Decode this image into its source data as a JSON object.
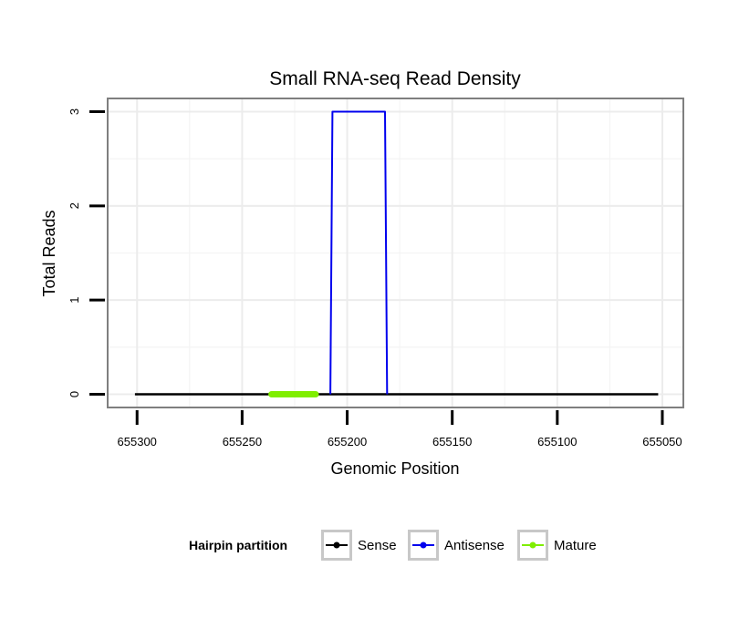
{
  "chart_data": {
    "type": "line",
    "title": "Small RNA-seq Read Density",
    "xlabel": "Genomic Position",
    "ylabel": "Total Reads",
    "x_reversed": true,
    "xlim": [
      655314,
      655040
    ],
    "ylim": [
      -0.14,
      3.14
    ],
    "x_ticks": [
      655300,
      655250,
      655200,
      655150,
      655100,
      655050
    ],
    "x_tick_labels": [
      "655300",
      "655250",
      "655200",
      "655150",
      "655100",
      "655050"
    ],
    "y_ticks": [
      0,
      1,
      2,
      3
    ],
    "y_tick_labels": [
      "0",
      "1",
      "2",
      "3"
    ],
    "grid": true,
    "legend": {
      "title": "Hairpin partition",
      "position": "bottom",
      "entries": [
        "Sense",
        "Antisense",
        "Mature"
      ]
    },
    "series": [
      {
        "name": "Sense",
        "color": "#000000",
        "x": [
          655301,
          655052
        ],
        "y": [
          0,
          0
        ]
      },
      {
        "name": "Antisense",
        "color": "#0000ee",
        "x": [
          655208,
          655207,
          655182,
          655181
        ],
        "y": [
          0,
          3,
          3,
          0
        ]
      },
      {
        "name": "Mature",
        "color": "#7fee00",
        "x": [
          655236,
          655215
        ],
        "y": [
          0,
          0
        ]
      }
    ]
  }
}
